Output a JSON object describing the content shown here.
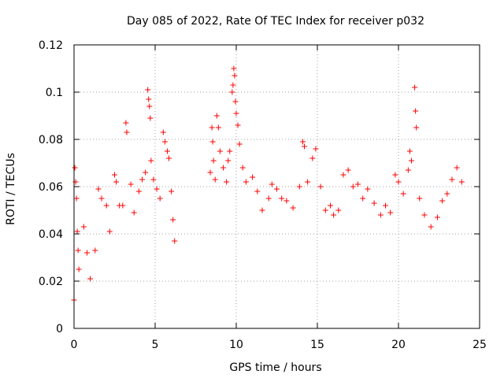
{
  "chart_data": {
    "type": "scatter",
    "title": "Day 085 of 2022, Rate Of TEC Index for receiver p032",
    "xlabel": "GPS time / hours",
    "ylabel": "ROTI / TECUs",
    "xlim": [
      0,
      25
    ],
    "ylim": [
      0,
      0.12
    ],
    "x_ticks": [
      "0",
      "5",
      "10",
      "15",
      "20",
      "25"
    ],
    "y_ticks": [
      "0",
      "0.02",
      "0.04",
      "0.06",
      "0.08",
      "0.1",
      "0.12"
    ],
    "grid": true,
    "marker": "plus",
    "color": "#ff0000",
    "series": [
      {
        "points": [
          [
            0.0,
            0.012
          ],
          [
            0.05,
            0.068
          ],
          [
            0.1,
            0.062
          ],
          [
            0.15,
            0.055
          ],
          [
            0.2,
            0.041
          ],
          [
            0.25,
            0.033
          ],
          [
            0.3,
            0.025
          ],
          [
            0.6,
            0.043
          ],
          [
            0.8,
            0.032
          ],
          [
            1.0,
            0.021
          ],
          [
            1.3,
            0.033
          ],
          [
            1.5,
            0.059
          ],
          [
            1.7,
            0.055
          ],
          [
            2.0,
            0.052
          ],
          [
            2.2,
            0.041
          ],
          [
            2.5,
            0.065
          ],
          [
            2.6,
            0.062
          ],
          [
            2.8,
            0.052
          ],
          [
            3.0,
            0.052
          ],
          [
            3.2,
            0.087
          ],
          [
            3.25,
            0.083
          ],
          [
            3.5,
            0.061
          ],
          [
            3.7,
            0.049
          ],
          [
            4.0,
            0.058
          ],
          [
            4.2,
            0.063
          ],
          [
            4.4,
            0.066
          ],
          [
            4.55,
            0.101
          ],
          [
            4.6,
            0.097
          ],
          [
            4.65,
            0.094
          ],
          [
            4.7,
            0.089
          ],
          [
            4.75,
            0.071
          ],
          [
            4.9,
            0.063
          ],
          [
            5.1,
            0.059
          ],
          [
            5.3,
            0.055
          ],
          [
            5.5,
            0.083
          ],
          [
            5.6,
            0.079
          ],
          [
            5.75,
            0.075
          ],
          [
            5.85,
            0.072
          ],
          [
            6.0,
            0.058
          ],
          [
            6.1,
            0.046
          ],
          [
            6.2,
            0.037
          ],
          [
            8.4,
            0.066
          ],
          [
            8.5,
            0.085
          ],
          [
            8.55,
            0.079
          ],
          [
            8.6,
            0.071
          ],
          [
            8.7,
            0.063
          ],
          [
            8.8,
            0.09
          ],
          [
            8.9,
            0.085
          ],
          [
            9.0,
            0.075
          ],
          [
            9.2,
            0.068
          ],
          [
            9.4,
            0.062
          ],
          [
            9.5,
            0.071
          ],
          [
            9.6,
            0.075
          ],
          [
            9.75,
            0.1
          ],
          [
            9.8,
            0.103
          ],
          [
            9.85,
            0.11
          ],
          [
            9.9,
            0.107
          ],
          [
            9.95,
            0.096
          ],
          [
            10.0,
            0.091
          ],
          [
            10.1,
            0.086
          ],
          [
            10.2,
            0.078
          ],
          [
            10.4,
            0.068
          ],
          [
            10.6,
            0.062
          ],
          [
            11.0,
            0.064
          ],
          [
            11.3,
            0.058
          ],
          [
            11.6,
            0.05
          ],
          [
            12.0,
            0.055
          ],
          [
            12.2,
            0.061
          ],
          [
            12.5,
            0.059
          ],
          [
            12.8,
            0.055
          ],
          [
            13.1,
            0.054
          ],
          [
            13.5,
            0.051
          ],
          [
            13.9,
            0.06
          ],
          [
            14.1,
            0.079
          ],
          [
            14.2,
            0.077
          ],
          [
            14.4,
            0.062
          ],
          [
            14.7,
            0.072
          ],
          [
            14.9,
            0.076
          ],
          [
            15.2,
            0.06
          ],
          [
            15.5,
            0.05
          ],
          [
            15.8,
            0.052
          ],
          [
            16.0,
            0.048
          ],
          [
            16.3,
            0.05
          ],
          [
            16.6,
            0.065
          ],
          [
            16.9,
            0.067
          ],
          [
            17.2,
            0.06
          ],
          [
            17.5,
            0.061
          ],
          [
            17.8,
            0.055
          ],
          [
            18.1,
            0.059
          ],
          [
            18.5,
            0.053
          ],
          [
            18.9,
            0.048
          ],
          [
            19.2,
            0.052
          ],
          [
            19.5,
            0.049
          ],
          [
            19.8,
            0.065
          ],
          [
            20.0,
            0.062
          ],
          [
            20.3,
            0.057
          ],
          [
            20.6,
            0.067
          ],
          [
            20.7,
            0.075
          ],
          [
            20.8,
            0.071
          ],
          [
            21.0,
            0.102
          ],
          [
            21.05,
            0.092
          ],
          [
            21.1,
            0.085
          ],
          [
            21.3,
            0.055
          ],
          [
            21.6,
            0.048
          ],
          [
            22.0,
            0.043
          ],
          [
            22.4,
            0.047
          ],
          [
            22.7,
            0.054
          ],
          [
            23.0,
            0.057
          ],
          [
            23.3,
            0.063
          ],
          [
            23.6,
            0.068
          ],
          [
            23.9,
            0.062
          ]
        ]
      }
    ]
  }
}
